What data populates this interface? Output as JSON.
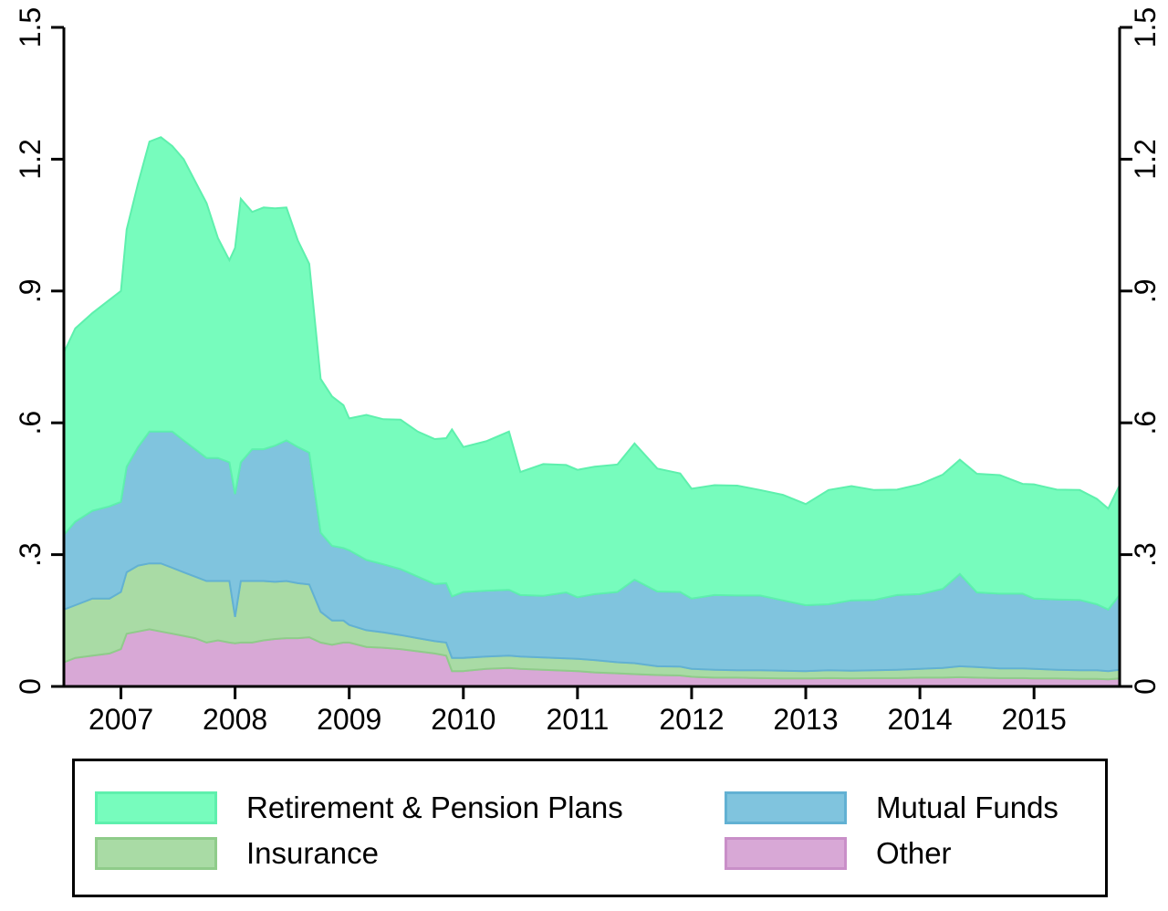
{
  "chart_data": {
    "type": "area",
    "stacked": true,
    "title": "",
    "xlabel": "",
    "ylabel": "",
    "xlim": [
      2006.5,
      2015.75
    ],
    "ylim": [
      0,
      1.5
    ],
    "x_ticks": [
      2007,
      2008,
      2009,
      2010,
      2011,
      2012,
      2013,
      2014,
      2015
    ],
    "x_tick_labels": [
      "2007",
      "2008",
      "2009",
      "2010",
      "2011",
      "2012",
      "2013",
      "2014",
      "2015"
    ],
    "y_ticks": [
      0,
      0.3,
      0.6,
      0.9,
      1.2,
      1.5
    ],
    "y_tick_labels": [
      "0",
      ".3",
      ".6",
      ".9",
      "1.2",
      "1.5"
    ],
    "y_axis_right_mirrored": true,
    "grid": false,
    "legend_position": "bottom",
    "x": [
      2006.5,
      2006.6,
      2006.75,
      2006.9,
      2007.0,
      2007.05,
      2007.15,
      2007.25,
      2007.35,
      2007.45,
      2007.55,
      2007.65,
      2007.75,
      2007.85,
      2007.95,
      2008.0,
      2008.05,
      2008.15,
      2008.25,
      2008.35,
      2008.45,
      2008.55,
      2008.65,
      2008.75,
      2008.85,
      2008.95,
      2009.0,
      2009.15,
      2009.3,
      2009.45,
      2009.6,
      2009.75,
      2009.85,
      2009.9,
      2010.0,
      2010.2,
      2010.4,
      2010.5,
      2010.7,
      2010.9,
      2011.0,
      2011.15,
      2011.35,
      2011.5,
      2011.7,
      2011.9,
      2012.0,
      2012.2,
      2012.4,
      2012.6,
      2012.8,
      2013.0,
      2013.2,
      2013.4,
      2013.6,
      2013.8,
      2014.0,
      2014.2,
      2014.35,
      2014.5,
      2014.7,
      2014.9,
      2015.0,
      2015.2,
      2015.4,
      2015.55,
      2015.65,
      2015.75
    ],
    "series": [
      {
        "name": "Other",
        "color": "#d8a8d6",
        "stroke": "#c98fc8",
        "values": [
          0.055,
          0.065,
          0.07,
          0.075,
          0.085,
          0.12,
          0.125,
          0.13,
          0.125,
          0.12,
          0.115,
          0.11,
          0.1,
          0.105,
          0.1,
          0.098,
          0.1,
          0.1,
          0.105,
          0.108,
          0.11,
          0.11,
          0.112,
          0.1,
          0.095,
          0.1,
          0.1,
          0.09,
          0.088,
          0.085,
          0.08,
          0.075,
          0.07,
          0.035,
          0.035,
          0.04,
          0.042,
          0.04,
          0.038,
          0.036,
          0.035,
          0.032,
          0.03,
          0.028,
          0.026,
          0.025,
          0.022,
          0.02,
          0.02,
          0.019,
          0.018,
          0.018,
          0.019,
          0.018,
          0.019,
          0.019,
          0.02,
          0.02,
          0.021,
          0.02,
          0.019,
          0.019,
          0.018,
          0.018,
          0.017,
          0.017,
          0.016,
          0.018
        ]
      },
      {
        "name": "Insurance",
        "color": "#a9dba5",
        "stroke": "#8fcc8a",
        "values": [
          0.12,
          0.12,
          0.13,
          0.125,
          0.13,
          0.14,
          0.15,
          0.15,
          0.155,
          0.15,
          0.145,
          0.14,
          0.14,
          0.135,
          0.14,
          0.06,
          0.14,
          0.14,
          0.135,
          0.13,
          0.13,
          0.125,
          0.12,
          0.07,
          0.055,
          0.05,
          0.04,
          0.038,
          0.035,
          0.032,
          0.03,
          0.028,
          0.03,
          0.03,
          0.03,
          0.028,
          0.028,
          0.028,
          0.028,
          0.028,
          0.028,
          0.028,
          0.025,
          0.025,
          0.02,
          0.02,
          0.018,
          0.018,
          0.017,
          0.018,
          0.018,
          0.017,
          0.018,
          0.018,
          0.018,
          0.019,
          0.02,
          0.022,
          0.025,
          0.024,
          0.022,
          0.022,
          0.022,
          0.02,
          0.02,
          0.02,
          0.019,
          0.02
        ]
      },
      {
        "name": "Mutual Funds",
        "color": "#80c4de",
        "stroke": "#62b1d3",
        "values": [
          0.17,
          0.19,
          0.2,
          0.21,
          0.205,
          0.24,
          0.27,
          0.3,
          0.3,
          0.31,
          0.3,
          0.29,
          0.28,
          0.28,
          0.27,
          0.28,
          0.27,
          0.3,
          0.3,
          0.31,
          0.32,
          0.31,
          0.3,
          0.18,
          0.17,
          0.165,
          0.17,
          0.16,
          0.155,
          0.15,
          0.14,
          0.13,
          0.135,
          0.14,
          0.15,
          0.15,
          0.15,
          0.14,
          0.14,
          0.15,
          0.14,
          0.15,
          0.16,
          0.19,
          0.17,
          0.17,
          0.16,
          0.17,
          0.17,
          0.17,
          0.16,
          0.15,
          0.15,
          0.16,
          0.16,
          0.17,
          0.17,
          0.18,
          0.21,
          0.17,
          0.17,
          0.17,
          0.16,
          0.16,
          0.16,
          0.15,
          0.14,
          0.17
        ]
      },
      {
        "name": "Retirement & Pension Plans",
        "color": "#77fcbd",
        "stroke": "#5ef0ad",
        "values": [
          0.415,
          0.44,
          0.45,
          0.47,
          0.48,
          0.54,
          0.6,
          0.66,
          0.67,
          0.65,
          0.64,
          0.61,
          0.58,
          0.5,
          0.46,
          0.56,
          0.6,
          0.54,
          0.55,
          0.54,
          0.53,
          0.47,
          0.43,
          0.35,
          0.34,
          0.325,
          0.3,
          0.33,
          0.33,
          0.34,
          0.33,
          0.33,
          0.33,
          0.38,
          0.33,
          0.34,
          0.36,
          0.28,
          0.3,
          0.29,
          0.29,
          0.29,
          0.29,
          0.31,
          0.28,
          0.27,
          0.25,
          0.25,
          0.25,
          0.24,
          0.24,
          0.23,
          0.26,
          0.26,
          0.25,
          0.24,
          0.25,
          0.26,
          0.26,
          0.27,
          0.27,
          0.25,
          0.26,
          0.25,
          0.25,
          0.24,
          0.23,
          0.25
        ]
      }
    ]
  }
}
